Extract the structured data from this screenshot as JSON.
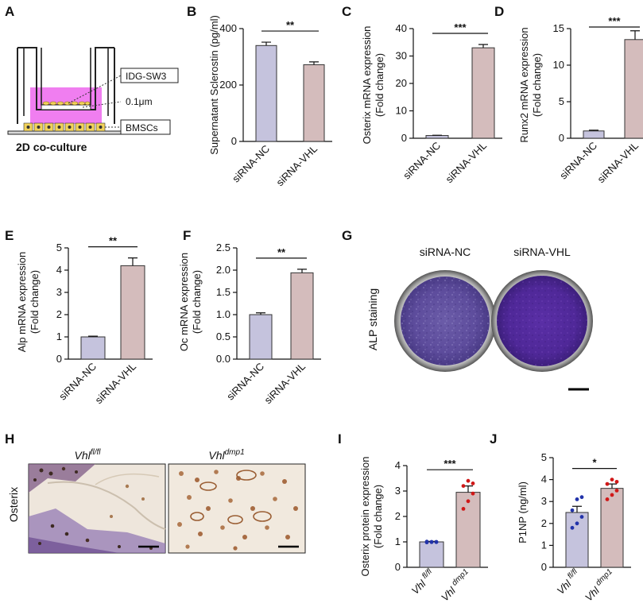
{
  "figure": {
    "panel_letters": [
      "A",
      "B",
      "C",
      "D",
      "E",
      "F",
      "G",
      "H",
      "I",
      "J"
    ]
  },
  "panelA": {
    "labels": [
      "IDG-SW3",
      "0.1μm",
      "BMSCs"
    ],
    "caption": "2D co-culture",
    "colors": {
      "medium": "#f07ef0",
      "cells": "#f2d35a",
      "membrane": "#c8a030"
    }
  },
  "panelG": {
    "labels": [
      "siRNA-NC",
      "siRNA-VHL"
    ],
    "ylabel": "ALP staining"
  },
  "panelH": {
    "titles": [
      {
        "base": "Vhl",
        "sup": "fl/fl"
      },
      {
        "base": "Vhl",
        "sup": "dmp1"
      }
    ],
    "ylabel": "Osterix"
  },
  "chart_data": [
    {
      "panel": "B",
      "type": "bar",
      "categories": [
        "siRNA-NC",
        "siRNA-VHL"
      ],
      "values": [
        340,
        272
      ],
      "errors": [
        12,
        10
      ],
      "ylabel": "Supernatant Sclerostin (pg/ml)",
      "ylim": [
        0,
        400
      ],
      "yticks": [
        0,
        200,
        400
      ],
      "tick_labels": [
        "0",
        "200",
        "400"
      ],
      "significance": "**",
      "colors": [
        "#c5c3dd",
        "#d4bcbc"
      ]
    },
    {
      "panel": "C",
      "type": "bar",
      "categories": [
        "siRNA-NC",
        "siRNA-VHL"
      ],
      "values": [
        1.0,
        33.0
      ],
      "errors": [
        0.1,
        1.2
      ],
      "ylabel": [
        "Osterix mRNA expression",
        "(Fold change)"
      ],
      "ylim": [
        0,
        40
      ],
      "yticks": [
        0,
        10,
        20,
        30,
        40
      ],
      "tick_labels": [
        "0",
        "10",
        "20",
        "30",
        "40"
      ],
      "significance": "***",
      "colors": [
        "#c5c3dd",
        "#d4bcbc"
      ]
    },
    {
      "panel": "D",
      "type": "bar",
      "categories": [
        "siRNA-NC",
        "siRNA-VHL"
      ],
      "values": [
        1.0,
        13.5
      ],
      "errors": [
        0.1,
        1.2
      ],
      "ylabel": [
        "Runx2 mRNA expression",
        "(Fold change)"
      ],
      "ylim": [
        0,
        15
      ],
      "yticks": [
        0,
        5,
        10,
        15
      ],
      "tick_labels": [
        "0",
        "5",
        "10",
        "15"
      ],
      "significance": "***",
      "colors": [
        "#c5c3dd",
        "#d4bcbc"
      ]
    },
    {
      "panel": "E",
      "type": "bar",
      "categories": [
        "siRNA-NC",
        "siRNA-VHL"
      ],
      "values": [
        1.0,
        4.2
      ],
      "errors": [
        0.03,
        0.35
      ],
      "ylabel": [
        "Alp mRNA expression",
        "(Fold change)"
      ],
      "ylim": [
        0,
        5
      ],
      "yticks": [
        0,
        1,
        2,
        3,
        4,
        5
      ],
      "tick_labels": [
        "0",
        "1",
        "2",
        "3",
        "4",
        "5"
      ],
      "significance": "**",
      "colors": [
        "#c5c3dd",
        "#d4bcbc"
      ]
    },
    {
      "panel": "F",
      "type": "bar",
      "categories": [
        "siRNA-NC",
        "siRNA-VHL"
      ],
      "values": [
        1.0,
        1.94
      ],
      "errors": [
        0.04,
        0.08
      ],
      "ylabel": [
        "Oc mRNA expression",
        "(Fold change)"
      ],
      "ylim": [
        0,
        2.5
      ],
      "yticks": [
        0,
        0.5,
        1,
        1.5,
        2,
        2.5
      ],
      "tick_labels": [
        "0.0",
        "0.5",
        "1.0",
        "1.5",
        "2.0",
        "2.5"
      ],
      "significance": "**",
      "colors": [
        "#c5c3dd",
        "#d4bcbc"
      ]
    },
    {
      "panel": "I",
      "type": "bar",
      "categories": [
        "Vhl fl/fl",
        "Vhl dmp1"
      ],
      "category_parts": [
        {
          "base": "Vhl",
          "sup": "fl/fl"
        },
        {
          "base": "Vhl",
          "sup": "dmp1"
        }
      ],
      "values": [
        1.0,
        2.95
      ],
      "errors": [
        0.02,
        0.25
      ],
      "points": [
        [
          0.98,
          0.99,
          1.0,
          1.01,
          1.0,
          0.99
        ],
        [
          2.3,
          2.6,
          2.9,
          3.2,
          3.4,
          3.3
        ]
      ],
      "ylabel": [
        "Osterix protein expression",
        "(Fold change)"
      ],
      "ylim": [
        0,
        4
      ],
      "yticks": [
        0,
        1,
        2,
        3,
        4
      ],
      "tick_labels": [
        "0",
        "1",
        "2",
        "3",
        "4"
      ],
      "significance": "***",
      "colors": [
        "#c5c3dd",
        "#d4bcbc"
      ],
      "point_colors": [
        "#2233aa",
        "#d01818"
      ]
    },
    {
      "panel": "J",
      "type": "bar",
      "categories": [
        "Vhl fl/fl",
        "Vhl dmp1"
      ],
      "category_parts": [
        {
          "base": "Vhl",
          "sup": "fl/fl"
        },
        {
          "base": "Vhl",
          "sup": "dmp1"
        }
      ],
      "values": [
        2.5,
        3.6
      ],
      "errors": [
        0.28,
        0.2
      ],
      "points": [
        [
          1.8,
          2.0,
          2.3,
          2.6,
          3.1,
          3.2
        ],
        [
          3.1,
          3.3,
          3.5,
          3.8,
          4.0,
          3.9
        ]
      ],
      "ylabel": "P1NP (ng/ml)",
      "ylim": [
        0,
        5
      ],
      "yticks": [
        0,
        1,
        2,
        3,
        4,
        5
      ],
      "tick_labels": [
        "0",
        "1",
        "2",
        "3",
        "4",
        "5"
      ],
      "significance": "*",
      "colors": [
        "#c5c3dd",
        "#d4bcbc"
      ],
      "point_colors": [
        "#2233aa",
        "#d01818"
      ]
    }
  ]
}
